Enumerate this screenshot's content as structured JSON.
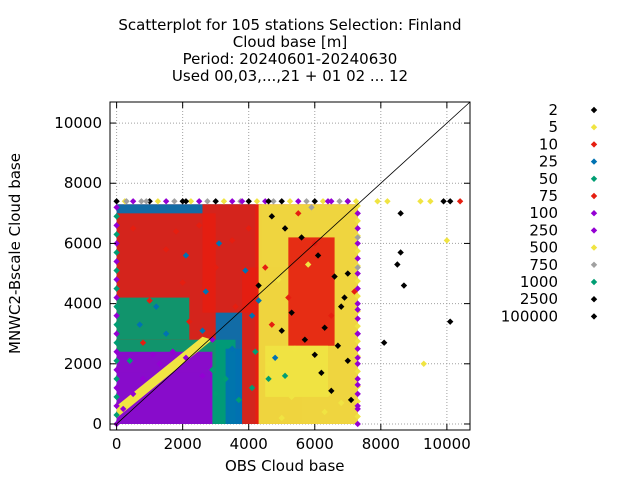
{
  "chart_data": {
    "type": "scatter",
    "title_lines": [
      "Scatterplot for  105 stations Selection: Finland",
      "Cloud base [m]",
      "Period: 20240601-20240630",
      "Used 00,03,...,21 + 01 02 ... 12"
    ],
    "xlabel": "OBS Cloud base",
    "ylabel": "MNWC2-Bscale Cloud base",
    "xlim": [
      -200,
      10700
    ],
    "ylim": [
      -200,
      10700
    ],
    "xticks": [
      0,
      2000,
      4000,
      6000,
      8000,
      10000
    ],
    "yticks": [
      0,
      2000,
      4000,
      6000,
      8000,
      10000
    ],
    "xtick_labels": [
      "0",
      "2000",
      "4000",
      "6000",
      "8000",
      "10000"
    ],
    "ytick_labels": [
      "0",
      "2000",
      "4000",
      "6000",
      "8000",
      "10000"
    ],
    "grid": true,
    "diagonal": true,
    "legend_position": "right",
    "legend": [
      {
        "label": "2",
        "color": "#000000"
      },
      {
        "label": "5",
        "color": "#f0e442"
      },
      {
        "label": "10",
        "color": "#e51e10"
      },
      {
        "label": "25",
        "color": "#0072b2"
      },
      {
        "label": "50",
        "color": "#009e73"
      },
      {
        "label": "75",
        "color": "#e51e10"
      },
      {
        "label": "100",
        "color": "#9400d3"
      },
      {
        "label": "250",
        "color": "#9400d3"
      },
      {
        "label": "500",
        "color": "#f0e442"
      },
      {
        "label": "750",
        "color": "#a0a0a0"
      },
      {
        "label": "1000",
        "color": "#009e73"
      },
      {
        "label": "2500",
        "color": "#000000"
      },
      {
        "label": "100000",
        "color": "#000000"
      }
    ],
    "series": [
      {
        "label": "2",
        "color": "#000000",
        "points": [
          [
            4700,
            6900
          ],
          [
            5100,
            6500
          ],
          [
            5600,
            6200
          ],
          [
            6100,
            5600
          ],
          [
            6600,
            4900
          ],
          [
            6900,
            4200
          ],
          [
            5300,
            3700
          ],
          [
            6300,
            3200
          ],
          [
            6700,
            2600
          ],
          [
            7000,
            2100
          ],
          [
            5700,
            2800
          ],
          [
            6200,
            1700
          ],
          [
            6500,
            1100
          ],
          [
            7100,
            800
          ],
          [
            8600,
            7000
          ],
          [
            9900,
            7400
          ],
          [
            10100,
            7400
          ],
          [
            8600,
            5700
          ],
          [
            8500,
            5300
          ],
          [
            8700,
            4600
          ],
          [
            10100,
            3400
          ],
          [
            8100,
            2700
          ],
          [
            4300,
            4600
          ],
          [
            4600,
            7400
          ],
          [
            2100,
            7400
          ],
          [
            5000,
            3100
          ],
          [
            6800,
            3900
          ],
          [
            7000,
            5000
          ],
          [
            6000,
            2300
          ]
        ]
      },
      {
        "label": "5",
        "color": "#f0e442",
        "points": [
          [
            7900,
            7400
          ],
          [
            8200,
            7400
          ],
          [
            9200,
            7400
          ],
          [
            9500,
            7400
          ],
          [
            10000,
            6100
          ],
          [
            9300,
            2000
          ],
          [
            4600,
            2000
          ],
          [
            5300,
            900
          ],
          [
            5800,
            5300
          ],
          [
            6400,
            1000
          ],
          [
            4900,
            4800
          ],
          [
            5400,
            2500
          ],
          [
            6800,
            700
          ],
          [
            6300,
            400
          ],
          [
            5000,
            200
          ]
        ]
      },
      {
        "label": "10",
        "color": "#e51e10",
        "points": [
          [
            500,
            6500
          ],
          [
            1500,
            5800
          ],
          [
            2500,
            6600
          ],
          [
            3500,
            6100
          ],
          [
            4500,
            5200
          ],
          [
            1000,
            4100
          ],
          [
            2000,
            4700
          ],
          [
            3000,
            5200
          ],
          [
            4000,
            6500
          ],
          [
            5500,
            7000
          ],
          [
            6000,
            6000
          ],
          [
            5200,
            4200
          ],
          [
            4700,
            3300
          ],
          [
            6500,
            3600
          ],
          [
            7200,
            4400
          ],
          [
            10400,
            7400
          ],
          [
            2200,
            3400
          ],
          [
            3600,
            3900
          ],
          [
            800,
            2700
          ],
          [
            1800,
            6400
          ]
        ]
      },
      {
        "label": "25",
        "color": "#0072b2",
        "points": [
          [
            700,
            3300
          ],
          [
            1200,
            3900
          ],
          [
            2100,
            5600
          ],
          [
            3100,
            6000
          ],
          [
            3900,
            5100
          ],
          [
            2600,
            3100
          ],
          [
            4100,
            3600
          ],
          [
            4800,
            2200
          ],
          [
            3500,
            2500
          ],
          [
            1500,
            3000
          ],
          [
            2700,
            4400
          ],
          [
            4300,
            4100
          ]
        ]
      },
      {
        "label": "50",
        "color": "#009e73",
        "points": [
          [
            2900,
            1800
          ],
          [
            3300,
            1500
          ],
          [
            4200,
            2400
          ],
          [
            4600,
            1500
          ],
          [
            3700,
            800
          ],
          [
            4100,
            1200
          ],
          [
            5100,
            1600
          ],
          [
            3000,
            1000
          ],
          [
            400,
            2100
          ]
        ]
      },
      {
        "label": "250",
        "color": "#9400d3",
        "points": [
          [
            200,
            500
          ],
          [
            500,
            1000
          ],
          [
            800,
            1500
          ],
          [
            1300,
            2000
          ],
          [
            1700,
            2400
          ],
          [
            2100,
            2200
          ],
          [
            2600,
            1600
          ],
          [
            2900,
            2800
          ],
          [
            7300,
            600
          ],
          [
            7300,
            1300
          ],
          [
            7300,
            2200
          ],
          [
            7300,
            3000
          ],
          [
            7300,
            3800
          ],
          [
            3800,
            7400
          ],
          [
            6400,
            7400
          ],
          [
            7000,
            7400
          ],
          [
            1100,
            2300
          ]
        ]
      },
      {
        "label": "750",
        "color": "#a0a0a0",
        "points": [
          [
            300,
            7400
          ],
          [
            900,
            7400
          ],
          [
            5900,
            7200
          ],
          [
            7300,
            5200
          ],
          [
            7300,
            6200
          ]
        ]
      }
    ]
  }
}
